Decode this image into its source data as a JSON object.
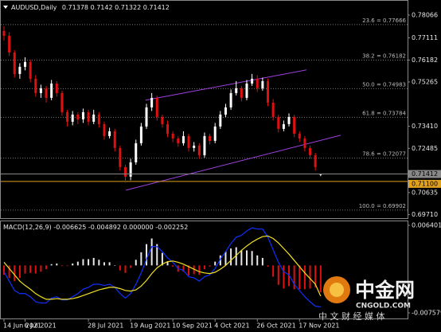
{
  "chart_data": [
    {
      "type": "candlestick",
      "title": "AUDUSD,Daily",
      "categories": [
        "14 Jun 2021",
        null,
        null,
        null,
        "6 Jul 2021",
        null,
        null,
        null,
        null,
        null,
        null,
        null,
        null,
        null,
        null,
        null,
        "28 Jul 2021",
        null,
        null,
        null,
        null,
        null,
        null,
        null,
        "19 Aug 2021",
        null,
        null,
        null,
        null,
        null,
        null,
        null,
        "10 Sep 2021",
        null,
        null,
        null,
        null,
        null,
        null,
        null,
        "4 Oct 2021",
        null,
        null,
        null,
        null,
        null,
        null,
        null,
        "26 Oct 2021",
        null,
        null,
        null,
        null,
        null,
        null,
        null,
        "17 Nov 2021",
        null,
        null,
        null,
        null
      ],
      "candles": [
        [
          0.774,
          0.776,
          0.77,
          0.772
        ],
        [
          0.772,
          0.7735,
          0.7635,
          0.765
        ],
        [
          0.765,
          0.766,
          0.7545,
          0.756
        ],
        [
          0.756,
          0.7605,
          0.754,
          0.759
        ],
        [
          0.759,
          0.763,
          0.7575,
          0.761
        ],
        [
          0.761,
          0.762,
          0.7525,
          0.754
        ],
        [
          0.754,
          0.7555,
          0.7465,
          0.748
        ],
        [
          0.748,
          0.7515,
          0.746,
          0.75
        ],
        [
          0.75,
          0.751,
          0.744,
          0.746
        ],
        [
          0.746,
          0.7535,
          0.745,
          0.752
        ],
        [
          0.752,
          0.753,
          0.7465,
          0.748
        ],
        [
          0.748,
          0.749,
          0.7385,
          0.74
        ],
        [
          0.74,
          0.741,
          0.734,
          0.736
        ],
        [
          0.736,
          0.7405,
          0.7345,
          0.739
        ],
        [
          0.739,
          0.74,
          0.735,
          0.737
        ],
        [
          0.737,
          0.7415,
          0.7355,
          0.74
        ],
        [
          0.74,
          0.741,
          0.7345,
          0.736
        ],
        [
          0.736,
          0.741,
          0.735,
          0.739
        ],
        [
          0.739,
          0.74,
          0.7335,
          0.735
        ],
        [
          0.735,
          0.736,
          0.7285,
          0.73
        ],
        [
          0.73,
          0.7335,
          0.729,
          0.732
        ],
        [
          0.732,
          0.733,
          0.7235,
          0.725
        ],
        [
          0.725,
          0.726,
          0.7155,
          0.717
        ],
        [
          0.717,
          0.718,
          0.7105,
          0.713
        ],
        [
          0.713,
          0.7205,
          0.7115,
          0.719
        ],
        [
          0.719,
          0.7285,
          0.718,
          0.727
        ],
        [
          0.727,
          0.7355,
          0.726,
          0.734
        ],
        [
          0.734,
          0.7435,
          0.733,
          0.742
        ],
        [
          0.742,
          0.748,
          0.7405,
          0.746
        ],
        [
          0.746,
          0.747,
          0.7365,
          0.738
        ],
        [
          0.738,
          0.739,
          0.7335,
          0.735
        ],
        [
          0.735,
          0.7365,
          0.7295,
          0.731
        ],
        [
          0.731,
          0.732,
          0.7275,
          0.729
        ],
        [
          0.729,
          0.73,
          0.7255,
          0.727
        ],
        [
          0.727,
          0.732,
          0.726,
          0.73
        ],
        [
          0.73,
          0.731,
          0.7235,
          0.725
        ],
        [
          0.725,
          0.7275,
          0.7235,
          0.726
        ],
        [
          0.726,
          0.727,
          0.7205,
          0.722
        ],
        [
          0.722,
          0.7315,
          0.721,
          0.73
        ],
        [
          0.73,
          0.731,
          0.7265,
          0.728
        ],
        [
          0.728,
          0.7355,
          0.727,
          0.734
        ],
        [
          0.734,
          0.7405,
          0.733,
          0.739
        ],
        [
          0.739,
          0.7435,
          0.738,
          0.742
        ],
        [
          0.742,
          0.7495,
          0.741,
          0.748
        ],
        [
          0.748,
          0.753,
          0.747,
          0.75
        ],
        [
          0.75,
          0.751,
          0.7445,
          0.746
        ],
        [
          0.746,
          0.7535,
          0.745,
          0.752
        ],
        [
          0.752,
          0.756,
          0.751,
          0.754
        ],
        [
          0.754,
          0.7555,
          0.7485,
          0.75
        ],
        [
          0.75,
          0.7545,
          0.749,
          0.753
        ],
        [
          0.753,
          0.754,
          0.7425,
          0.744
        ],
        [
          0.744,
          0.7455,
          0.7365,
          0.738
        ],
        [
          0.738,
          0.739,
          0.7315,
          0.733
        ],
        [
          0.733,
          0.7365,
          0.732,
          0.735
        ],
        [
          0.735,
          0.7395,
          0.734,
          0.738
        ],
        [
          0.738,
          0.739,
          0.7295,
          0.731
        ],
        [
          0.731,
          0.732,
          0.7275,
          0.729
        ],
        [
          0.729,
          0.73,
          0.7235,
          0.725
        ],
        [
          0.725,
          0.726,
          0.7205,
          0.722
        ],
        [
          0.722,
          0.723,
          0.7155,
          0.717
        ],
        [
          0.71378,
          0.7142,
          0.71322,
          0.71412
        ]
      ],
      "up_color": "#ffffff",
      "down_color": "#e01010",
      "ylim": [
        0.6963,
        0.7853
      ],
      "yticks": [
        0.78066,
        0.77111,
        0.76182,
        0.75265,
        {
          "value": 0.7341,
          "label": "0.73410"
        },
        0.72485,
        0.70635,
        {
          "value": 0.6971,
          "label": "0.69710"
        }
      ],
      "fib_levels": [
        {
          "label": "23.6 = 0.77666",
          "value": 0.77666
        },
        {
          "label": "38.2 = 0.76182",
          "value": 0.76182
        },
        {
          "label": "50.0 = 0.74983",
          "value": 0.74983
        },
        {
          "label": "61.8 = 0.73784",
          "value": 0.73784
        },
        {
          "label": "78.6 = 0.72077",
          "value": 0.72077
        },
        {
          "label": "100.0 = 0.69902",
          "value": 0.69902
        }
      ],
      "channel_lines": [
        {
          "x": [
            26.8,
            57.3
          ],
          "y": [
            0.745,
            0.7577
          ]
        },
        {
          "x": [
            23.1,
            63.8
          ],
          "y": [
            0.70735,
            0.73034
          ]
        }
      ],
      "channel_color": "#a040e0",
      "hline": {
        "value": 0.711,
        "label": "0.71100",
        "color": "#e0a020"
      }
    },
    {
      "type": "macd",
      "title": "MACD(12,26,9)",
      "readout": [
        {
          "value": -0.006625,
          "label": "-0.006625"
        },
        {
          "value": -0.004892,
          "label": "-0.004892"
        },
        {
          "value": 0,
          "label": "0.000000"
        },
        {
          "value": -0.002252,
          "label": "-0.002252"
        }
      ],
      "histogram": [
        -0.0015,
        -0.002,
        -0.0025,
        -0.002,
        -0.0013,
        -0.0012,
        -0.0013,
        -0.001,
        -0.0006,
        0.0002,
        0.0003,
        -0.0001,
        -0.0001,
        0.0003,
        0.0006,
        0.001,
        0.001,
        0.0012,
        0.0009,
        0.0005,
        0.0005,
        0,
        -0.0008,
        -0.0012,
        -0.0004,
        0.0009,
        0.0021,
        0.0034,
        0.0043,
        0.0034,
        0.002,
        0.0006,
        -0.0002,
        -0.001,
        -0.001,
        -0.0016,
        -0.0014,
        -0.0015,
        -0.0006,
        -0.0002,
        0.0006,
        0.0016,
        0.0022,
        0.0027,
        0.0029,
        0.0024,
        0.0024,
        0.0023,
        0.0016,
        0.0012,
        -0.0002,
        -0.0018,
        -0.0031,
        -0.0037,
        -0.0033,
        -0.0038,
        -0.0038,
        -0.0038,
        -0.0037,
        -0.0035,
        -0.0043
      ],
      "pos_color": "#e8e8e8",
      "neg_color": "#e01010",
      "series": [
        {
          "color": "#1030ff",
          "values": [
            -0.001,
            -0.0025,
            -0.004,
            -0.0045,
            -0.0045,
            -0.005,
            -0.0058,
            -0.006,
            -0.006,
            -0.0052,
            -0.005,
            -0.0055,
            -0.0055,
            -0.005,
            -0.0045,
            -0.0038,
            -0.0035,
            -0.003,
            -0.003,
            -0.0032,
            -0.003,
            -0.0035,
            -0.0045,
            -0.0052,
            -0.0045,
            -0.003,
            -0.0012,
            0.001,
            0.003,
            0.003,
            0.0022,
            0.0012,
            0.0005,
            -0.0005,
            -0.0008,
            -0.0018,
            -0.002,
            -0.0025,
            -0.0018,
            -0.0015,
            -0.0005,
            0.001,
            0.0022,
            0.0035,
            0.0045,
            0.0048,
            0.0055,
            0.006,
            0.0058,
            0.0058,
            0.0045,
            0.0025,
            0.0005,
            -0.001,
            -0.0015,
            -0.003,
            -0.004,
            -0.005,
            -0.0058,
            -0.0065,
            -0.006625
          ]
        },
        {
          "color": "#f0e020",
          "values": [
            0.0005,
            -0.0005,
            -0.0015,
            -0.0025,
            -0.0032,
            -0.0038,
            -0.0045,
            -0.005,
            -0.0054,
            -0.0054,
            -0.0053,
            -0.0054,
            -0.0054,
            -0.0053,
            -0.0051,
            -0.0048,
            -0.0045,
            -0.0042,
            -0.0039,
            -0.0037,
            -0.0035,
            -0.0035,
            -0.0037,
            -0.004,
            -0.0041,
            -0.0039,
            -0.0033,
            -0.0024,
            -0.0013,
            -0.0004,
            0.0002,
            0.0006,
            0.0007,
            0.0005,
            0.0002,
            -0.0002,
            -0.0006,
            -0.001,
            -0.0012,
            -0.0013,
            -0.0011,
            -0.0006,
            0,
            0.0008,
            0.0016,
            0.0024,
            0.0031,
            0.0037,
            0.0042,
            0.0046,
            0.0047,
            0.0043,
            0.0036,
            0.0027,
            0.0018,
            0.0008,
            -0.0002,
            -0.0012,
            -0.0021,
            -0.003,
            -0.004892
          ]
        }
      ],
      "ylim": [
        -0.00834,
        0.00678
      ],
      "yticks": [
        0.006401,
        -0.007579
      ]
    }
  ],
  "watermark": {
    "logo": "中金网",
    "site": "CNGOLD.COM",
    "slogan": "中 文 财 经 媒 体"
  }
}
